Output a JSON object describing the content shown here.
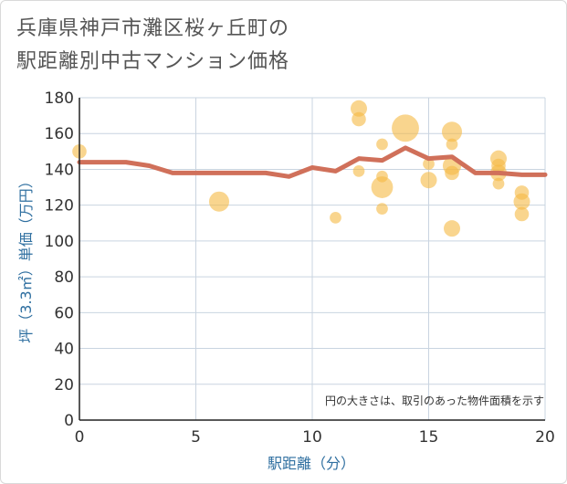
{
  "chart_data": {
    "type": "scatter",
    "title_lines": [
      "兵庫県神戸市灘区桜ヶ丘町の",
      "駅距離別中古マンション価格"
    ],
    "xlabel": "駅距離（分）",
    "ylabel": "坪（3.3㎡）単価（万円）",
    "xlim": [
      0,
      20
    ],
    "ylim": [
      0,
      180
    ],
    "x_ticks": [
      "0",
      "5",
      "10",
      "15",
      "20"
    ],
    "x_tick_values": [
      0,
      5,
      10,
      15,
      20
    ],
    "y_ticks": [
      "0",
      "20",
      "40",
      "60",
      "80",
      "100",
      "120",
      "140",
      "160",
      "180"
    ],
    "y_tick_values": [
      0,
      20,
      40,
      60,
      80,
      100,
      120,
      140,
      160,
      180
    ],
    "grid": true,
    "note": "円の大きさは、取引のあった物件面積を示す",
    "colors": {
      "bubble": "#f5b942",
      "line": "#d0705a",
      "grid": "#c9d4e0",
      "axis_text": "#2f6fa0"
    },
    "bubbles": [
      {
        "x": 0,
        "y": 150,
        "size": 3
      },
      {
        "x": 6,
        "y": 122,
        "size": 6
      },
      {
        "x": 11,
        "y": 113,
        "size": 2
      },
      {
        "x": 12,
        "y": 174,
        "size": 4
      },
      {
        "x": 12,
        "y": 168,
        "size": 3
      },
      {
        "x": 12,
        "y": 139,
        "size": 2
      },
      {
        "x": 13,
        "y": 154,
        "size": 2
      },
      {
        "x": 13,
        "y": 136,
        "size": 2
      },
      {
        "x": 13,
        "y": 130,
        "size": 7
      },
      {
        "x": 13,
        "y": 118,
        "size": 2
      },
      {
        "x": 14,
        "y": 163,
        "size": 11
      },
      {
        "x": 15,
        "y": 143,
        "size": 2
      },
      {
        "x": 15,
        "y": 134,
        "size": 4
      },
      {
        "x": 16,
        "y": 161,
        "size": 6
      },
      {
        "x": 16,
        "y": 154,
        "size": 2
      },
      {
        "x": 16,
        "y": 142,
        "size": 5
      },
      {
        "x": 16,
        "y": 138,
        "size": 3
      },
      {
        "x": 16,
        "y": 107,
        "size": 4
      },
      {
        "x": 18,
        "y": 146,
        "size": 4
      },
      {
        "x": 18,
        "y": 142,
        "size": 3
      },
      {
        "x": 18,
        "y": 138,
        "size": 4
      },
      {
        "x": 18,
        "y": 132,
        "size": 2
      },
      {
        "x": 19,
        "y": 127,
        "size": 3
      },
      {
        "x": 19,
        "y": 122,
        "size": 4
      },
      {
        "x": 19,
        "y": 115,
        "size": 3
      }
    ],
    "series": [
      {
        "name": "平均坪単価",
        "x": [
          0,
          1,
          2,
          3,
          4,
          5,
          6,
          7,
          8,
          9,
          10,
          11,
          12,
          13,
          14,
          15,
          16,
          17,
          18,
          19,
          20
        ],
        "values": [
          144,
          144,
          144,
          142,
          138,
          138,
          138,
          138,
          138,
          136,
          141,
          139,
          146,
          145,
          152,
          146,
          147,
          138,
          138,
          137,
          137
        ]
      }
    ]
  }
}
